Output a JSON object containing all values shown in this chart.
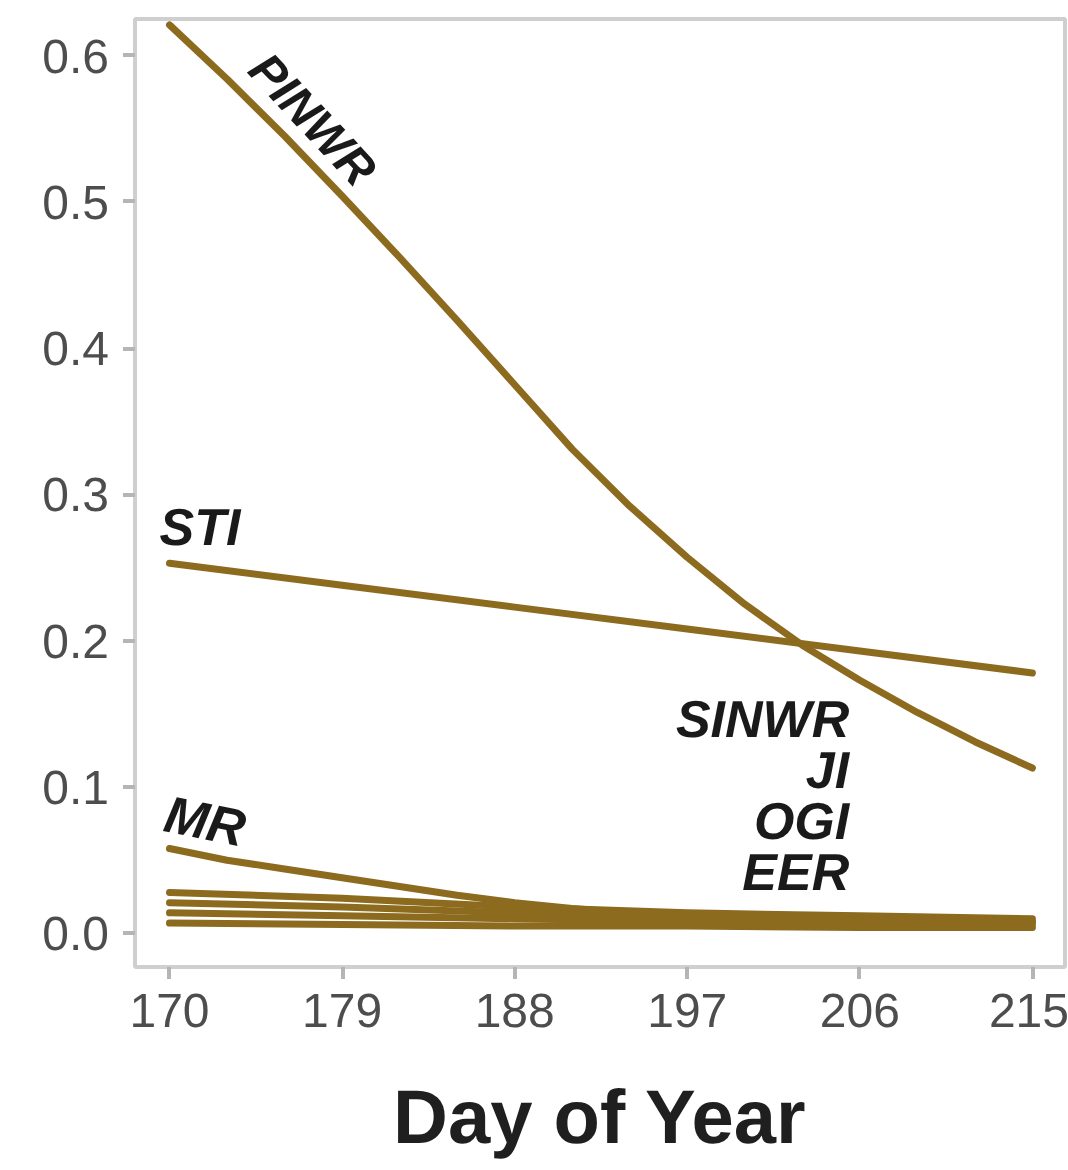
{
  "chart_data": {
    "type": "line",
    "xlabel": "Day of Year",
    "xlim": [
      168.2,
      216.7
    ],
    "ylim": [
      -0.023,
      0.625
    ],
    "xticks": [
      170,
      179,
      188,
      197,
      206,
      215
    ],
    "yticks": [
      {
        "value": 0,
        "label": "0.0"
      },
      0.1,
      0.2,
      0.3,
      0.4,
      0.5,
      0.6
    ],
    "grid": false,
    "line_style": "solid",
    "annotations": [
      "SINWR",
      "JI",
      "OGI",
      "EER"
    ],
    "series": [
      {
        "name": "PINWR",
        "color": "#8c6b1f",
        "x": [
          170,
          173,
          176,
          179,
          182,
          185,
          188,
          191,
          194,
          197,
          200,
          203,
          206,
          209,
          212,
          215
        ],
        "values": [
          0.621,
          0.584,
          0.545,
          0.504,
          0.462,
          0.419,
          0.375,
          0.331,
          0.292,
          0.257,
          0.225,
          0.197,
          0.173,
          0.151,
          0.131,
          0.113
        ]
      },
      {
        "name": "STI",
        "color": "#8c6b1f",
        "x": [
          170,
          179,
          188,
          197,
          206,
          215
        ],
        "values": [
          0.253,
          0.238,
          0.223,
          0.208,
          0.193,
          0.178
        ]
      },
      {
        "name": "MR",
        "color": "#8c6b1f",
        "x": [
          170,
          173,
          176,
          179,
          182,
          185,
          188,
          191,
          194,
          197,
          203,
          209,
          215
        ],
        "values": [
          0.058,
          0.05,
          0.044,
          0.038,
          0.032,
          0.026,
          0.021,
          0.017,
          0.014,
          0.012,
          0.01,
          0.009,
          0.008
        ]
      },
      {
        "color": "#8c6b1f",
        "x": [
          170,
          179,
          188,
          197,
          206,
          215
        ],
        "values": [
          0.028,
          0.024,
          0.018,
          0.014,
          0.012,
          0.01
        ]
      },
      {
        "color": "#8c6b1f",
        "x": [
          170,
          179,
          188,
          197,
          206,
          215
        ],
        "values": [
          0.021,
          0.018,
          0.014,
          0.011,
          0.009,
          0.008
        ]
      },
      {
        "color": "#8c6b1f",
        "x": [
          170,
          179,
          188,
          197,
          206,
          215
        ],
        "values": [
          0.014,
          0.012,
          0.01,
          0.008,
          0.007,
          0.006
        ]
      },
      {
        "color": "#8c6b1f",
        "x": [
          170,
          179,
          188,
          197,
          206,
          215
        ],
        "values": [
          0.007,
          0.006,
          0.005,
          0.005,
          0.004,
          0.004
        ]
      }
    ]
  }
}
